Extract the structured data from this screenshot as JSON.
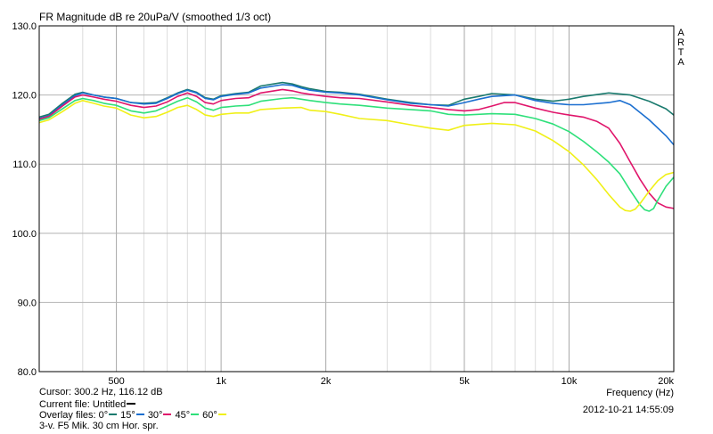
{
  "chart_data": {
    "type": "line",
    "title": "FR Magnitude dB re 20uPa/V (smoothed 1/3 oct)",
    "brand_letters": [
      "A",
      "R",
      "T",
      "A"
    ],
    "xscale": "log",
    "xlim": [
      300,
      20000
    ],
    "ylim": [
      80,
      130
    ],
    "xlabel": "Frequency (Hz)",
    "x_ticks": [
      {
        "value": 500,
        "label": "500"
      },
      {
        "value": 1000,
        "label": "1k"
      },
      {
        "value": 2000,
        "label": "2k"
      },
      {
        "value": 5000,
        "label": "5k"
      },
      {
        "value": 10000,
        "label": "10k"
      },
      {
        "value": 20000,
        "label": "20k"
      }
    ],
    "x_minor_grid": [
      400,
      600,
      700,
      800,
      900,
      3000,
      4000,
      6000,
      7000,
      8000,
      9000
    ],
    "y_ticks": [
      {
        "value": 80,
        "label": "80.0"
      },
      {
        "value": 90,
        "label": "90.0"
      },
      {
        "value": 100,
        "label": "100.0"
      },
      {
        "value": 110,
        "label": "110.0"
      },
      {
        "value": 120,
        "label": "120.0"
      },
      {
        "value": 130,
        "label": "130.0"
      }
    ],
    "grid": true,
    "series": [
      {
        "name": "0°",
        "color": "#1a7a6e",
        "points": [
          [
            300,
            116.8
          ],
          [
            320,
            117.2
          ],
          [
            350,
            118.8
          ],
          [
            380,
            120.1
          ],
          [
            400,
            120.4
          ],
          [
            430,
            120.0
          ],
          [
            460,
            119.7
          ],
          [
            500,
            119.5
          ],
          [
            550,
            118.9
          ],
          [
            600,
            118.8
          ],
          [
            650,
            118.9
          ],
          [
            700,
            119.6
          ],
          [
            750,
            120.3
          ],
          [
            800,
            120.8
          ],
          [
            850,
            120.4
          ],
          [
            900,
            119.6
          ],
          [
            950,
            119.4
          ],
          [
            1000,
            119.9
          ],
          [
            1100,
            120.2
          ],
          [
            1200,
            120.4
          ],
          [
            1300,
            121.3
          ],
          [
            1500,
            121.8
          ],
          [
            1600,
            121.6
          ],
          [
            1700,
            121.2
          ],
          [
            1800,
            120.9
          ],
          [
            2000,
            120.5
          ],
          [
            2200,
            120.4
          ],
          [
            2500,
            120.1
          ],
          [
            3000,
            119.4
          ],
          [
            3500,
            118.9
          ],
          [
            4000,
            118.6
          ],
          [
            4500,
            118.5
          ],
          [
            5000,
            119.4
          ],
          [
            5500,
            119.8
          ],
          [
            6000,
            120.2
          ],
          [
            7000,
            120.0
          ],
          [
            8000,
            119.4
          ],
          [
            9000,
            119.1
          ],
          [
            10000,
            119.4
          ],
          [
            11000,
            119.8
          ],
          [
            13000,
            120.3
          ],
          [
            15000,
            120.0
          ],
          [
            17000,
            119.1
          ],
          [
            19000,
            118.0
          ],
          [
            20000,
            117.1
          ]
        ]
      },
      {
        "name": "15°",
        "color": "#1b6fd0",
        "points": [
          [
            300,
            116.6
          ],
          [
            320,
            117.0
          ],
          [
            350,
            118.6
          ],
          [
            380,
            119.9
          ],
          [
            400,
            120.3
          ],
          [
            430,
            120.0
          ],
          [
            460,
            119.7
          ],
          [
            500,
            119.5
          ],
          [
            550,
            118.9
          ],
          [
            600,
            118.7
          ],
          [
            650,
            118.8
          ],
          [
            700,
            119.5
          ],
          [
            750,
            120.2
          ],
          [
            800,
            120.7
          ],
          [
            850,
            120.3
          ],
          [
            900,
            119.5
          ],
          [
            950,
            119.3
          ],
          [
            1000,
            119.8
          ],
          [
            1100,
            120.1
          ],
          [
            1200,
            120.3
          ],
          [
            1300,
            121.0
          ],
          [
            1500,
            121.5
          ],
          [
            1600,
            121.4
          ],
          [
            1700,
            121.0
          ],
          [
            1800,
            120.7
          ],
          [
            2000,
            120.4
          ],
          [
            2200,
            120.3
          ],
          [
            2500,
            120.0
          ],
          [
            3000,
            119.3
          ],
          [
            3500,
            118.8
          ],
          [
            4000,
            118.6
          ],
          [
            4500,
            118.4
          ],
          [
            5000,
            118.9
          ],
          [
            5500,
            119.4
          ],
          [
            6000,
            119.8
          ],
          [
            7000,
            120.0
          ],
          [
            8000,
            119.2
          ],
          [
            9000,
            118.8
          ],
          [
            10000,
            118.6
          ],
          [
            11000,
            118.6
          ],
          [
            13000,
            118.9
          ],
          [
            14000,
            119.2
          ],
          [
            15000,
            118.6
          ],
          [
            17000,
            116.4
          ],
          [
            19000,
            114.1
          ],
          [
            20000,
            112.8
          ]
        ]
      },
      {
        "name": "30°",
        "color": "#e0156b",
        "points": [
          [
            300,
            116.5
          ],
          [
            320,
            116.9
          ],
          [
            350,
            118.4
          ],
          [
            380,
            119.7
          ],
          [
            400,
            120.0
          ],
          [
            430,
            119.7
          ],
          [
            460,
            119.4
          ],
          [
            500,
            119.1
          ],
          [
            550,
            118.5
          ],
          [
            600,
            118.2
          ],
          [
            650,
            118.4
          ],
          [
            700,
            119.0
          ],
          [
            750,
            119.8
          ],
          [
            800,
            120.3
          ],
          [
            850,
            119.8
          ],
          [
            900,
            118.9
          ],
          [
            950,
            118.7
          ],
          [
            1000,
            119.2
          ],
          [
            1100,
            119.5
          ],
          [
            1200,
            119.6
          ],
          [
            1300,
            120.3
          ],
          [
            1500,
            120.8
          ],
          [
            1600,
            120.6
          ],
          [
            1700,
            120.3
          ],
          [
            1800,
            120.1
          ],
          [
            2000,
            119.8
          ],
          [
            2200,
            119.6
          ],
          [
            2500,
            119.5
          ],
          [
            3000,
            119.0
          ],
          [
            3500,
            118.5
          ],
          [
            4000,
            118.2
          ],
          [
            4500,
            117.9
          ],
          [
            5000,
            117.7
          ],
          [
            5500,
            117.9
          ],
          [
            6000,
            118.4
          ],
          [
            6500,
            118.9
          ],
          [
            7000,
            118.9
          ],
          [
            8000,
            118.1
          ],
          [
            9000,
            117.5
          ],
          [
            10000,
            117.1
          ],
          [
            11000,
            116.8
          ],
          [
            12000,
            116.2
          ],
          [
            13000,
            115.2
          ],
          [
            14000,
            113.0
          ],
          [
            15000,
            110.3
          ],
          [
            16000,
            107.8
          ],
          [
            17000,
            105.8
          ],
          [
            18000,
            104.4
          ],
          [
            19000,
            103.8
          ],
          [
            20000,
            103.6
          ]
        ]
      },
      {
        "name": "45°",
        "color": "#2ee07a",
        "points": [
          [
            300,
            116.3
          ],
          [
            320,
            116.7
          ],
          [
            350,
            118.0
          ],
          [
            380,
            119.2
          ],
          [
            400,
            119.5
          ],
          [
            430,
            119.2
          ],
          [
            460,
            118.8
          ],
          [
            500,
            118.5
          ],
          [
            550,
            117.7
          ],
          [
            600,
            117.4
          ],
          [
            650,
            117.7
          ],
          [
            700,
            118.4
          ],
          [
            750,
            119.1
          ],
          [
            800,
            119.6
          ],
          [
            850,
            119.0
          ],
          [
            900,
            118.1
          ],
          [
            950,
            117.8
          ],
          [
            1000,
            118.2
          ],
          [
            1100,
            118.4
          ],
          [
            1200,
            118.5
          ],
          [
            1300,
            119.1
          ],
          [
            1500,
            119.5
          ],
          [
            1600,
            119.6
          ],
          [
            1700,
            119.4
          ],
          [
            1800,
            119.2
          ],
          [
            2000,
            118.9
          ],
          [
            2200,
            118.7
          ],
          [
            2500,
            118.5
          ],
          [
            3000,
            118.1
          ],
          [
            3500,
            117.9
          ],
          [
            4000,
            117.7
          ],
          [
            4500,
            117.2
          ],
          [
            5000,
            117.1
          ],
          [
            6000,
            117.3
          ],
          [
            7000,
            117.2
          ],
          [
            8000,
            116.6
          ],
          [
            9000,
            115.8
          ],
          [
            10000,
            114.7
          ],
          [
            11000,
            113.3
          ],
          [
            12000,
            111.8
          ],
          [
            13000,
            110.3
          ],
          [
            14000,
            108.6
          ],
          [
            15000,
            106.2
          ],
          [
            16000,
            104.1
          ],
          [
            16500,
            103.4
          ],
          [
            17000,
            103.2
          ],
          [
            17500,
            103.6
          ],
          [
            18000,
            104.8
          ],
          [
            19000,
            106.8
          ],
          [
            20000,
            108.1
          ]
        ]
      },
      {
        "name": "60°",
        "color": "#f0f018",
        "points": [
          [
            300,
            116.0
          ],
          [
            320,
            116.4
          ],
          [
            350,
            117.6
          ],
          [
            380,
            118.8
          ],
          [
            400,
            119.2
          ],
          [
            430,
            118.8
          ],
          [
            460,
            118.4
          ],
          [
            500,
            118.1
          ],
          [
            550,
            117.1
          ],
          [
            600,
            116.7
          ],
          [
            650,
            116.9
          ],
          [
            700,
            117.5
          ],
          [
            750,
            118.2
          ],
          [
            800,
            118.5
          ],
          [
            850,
            117.9
          ],
          [
            900,
            117.1
          ],
          [
            950,
            116.9
          ],
          [
            1000,
            117.2
          ],
          [
            1100,
            117.4
          ],
          [
            1200,
            117.4
          ],
          [
            1300,
            117.9
          ],
          [
            1500,
            118.1
          ],
          [
            1700,
            118.2
          ],
          [
            1800,
            117.8
          ],
          [
            2000,
            117.6
          ],
          [
            2200,
            117.2
          ],
          [
            2500,
            116.6
          ],
          [
            3000,
            116.3
          ],
          [
            3500,
            115.7
          ],
          [
            4000,
            115.2
          ],
          [
            4500,
            114.9
          ],
          [
            5000,
            115.6
          ],
          [
            6000,
            115.9
          ],
          [
            7000,
            115.7
          ],
          [
            8000,
            114.8
          ],
          [
            9000,
            113.4
          ],
          [
            10000,
            111.8
          ],
          [
            11000,
            109.9
          ],
          [
            12000,
            107.8
          ],
          [
            13000,
            105.6
          ],
          [
            14000,
            103.8
          ],
          [
            14500,
            103.3
          ],
          [
            15000,
            103.2
          ],
          [
            15500,
            103.5
          ],
          [
            16000,
            104.3
          ],
          [
            17000,
            106.1
          ],
          [
            18000,
            107.6
          ],
          [
            19000,
            108.5
          ],
          [
            20000,
            108.8
          ]
        ]
      }
    ]
  },
  "info": {
    "cursor": "Cursor: 300.2 Hz, 116.12 dB",
    "current_file": "Current file: Untitled",
    "current_file_color": "#000000",
    "overlay_label": "Overlay files:",
    "note": "3-v. F5 Mik. 30 cm Hor. spr.",
    "timestamp": "2012-10-21  14:55:09"
  }
}
